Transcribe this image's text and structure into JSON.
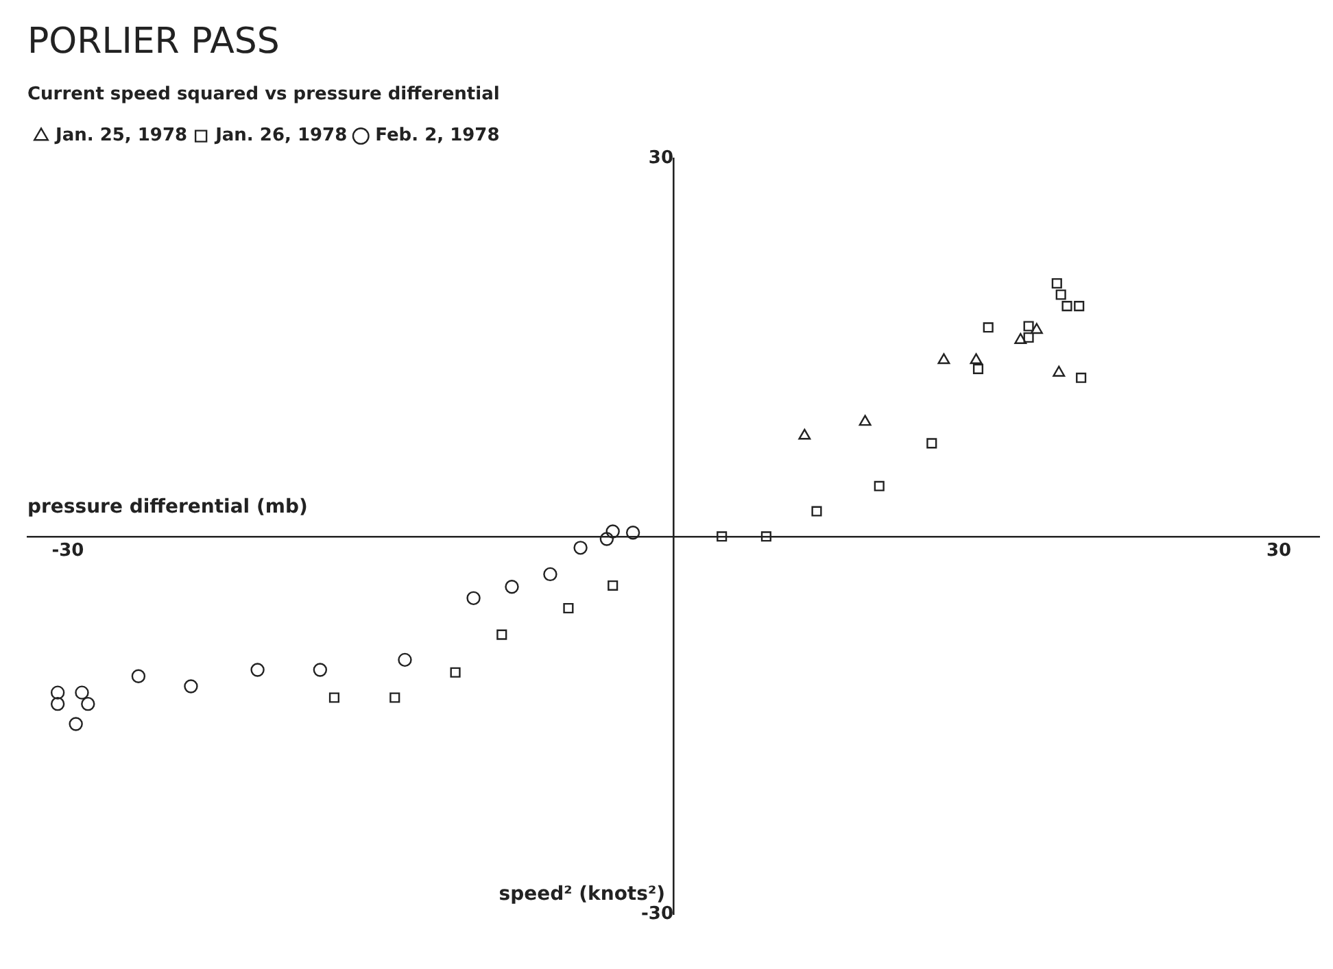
{
  "chart_data": {
    "type": "scatter",
    "title": "PORLIER PASS",
    "subtitle": "Current speed squared vs pressure differential",
    "xlabel": "pressure differential (mb)",
    "ylabel": "speed² (knots²)",
    "xlim": [
      -32,
      32
    ],
    "ylim": [
      -30,
      30
    ],
    "xticks": [
      -30,
      30
    ],
    "yticks": [
      -30,
      30
    ],
    "grid": false,
    "legend": "top left",
    "series": [
      {
        "name": "Jan. 25, 1978",
        "color": "#222222",
        "marker": "triangle",
        "x": [
          6.5,
          9.5,
          13.4,
          15,
          17.2,
          18,
          19.1
        ],
        "values": [
          8,
          9.1,
          14,
          14,
          15.6,
          16.4,
          13
        ]
      },
      {
        "name": "Jan. 26, 1978",
        "color": "#222222",
        "marker": "square",
        "x": [
          2.4,
          4.6,
          7.1,
          10.2,
          12.8,
          15.6,
          15.1,
          17.6,
          17.6,
          19,
          19.2,
          19.5,
          20.1,
          20.2,
          -3,
          -5.2,
          -8.5,
          -10.8,
          -13.8,
          -16.8
        ],
        "values": [
          0,
          0,
          2,
          4,
          7.4,
          16.6,
          13.3,
          16.7,
          15.8,
          20.1,
          19.2,
          18.3,
          18.3,
          12.6,
          -3.9,
          -5.7,
          -7.8,
          -10.8,
          -12.8,
          -12.8
        ]
      },
      {
        "name": "Feb. 2, 1978",
        "color": "#222222",
        "marker": "circle",
        "x": [
          -2,
          -3,
          -3.3,
          -4.6,
          -6.1,
          -8,
          -9.9,
          -13.3,
          -17.5,
          -20.6,
          -23.9,
          -26.5,
          -30.5,
          -30.5,
          -29.3,
          -29,
          -29.6
        ],
        "values": [
          0.3,
          0.4,
          -0.2,
          -0.9,
          -3,
          -4,
          -4.9,
          -9.8,
          -10.6,
          -10.6,
          -11.9,
          -11.1,
          -12.4,
          -13.3,
          -12.4,
          -13.3,
          -14.9
        ]
      }
    ]
  }
}
